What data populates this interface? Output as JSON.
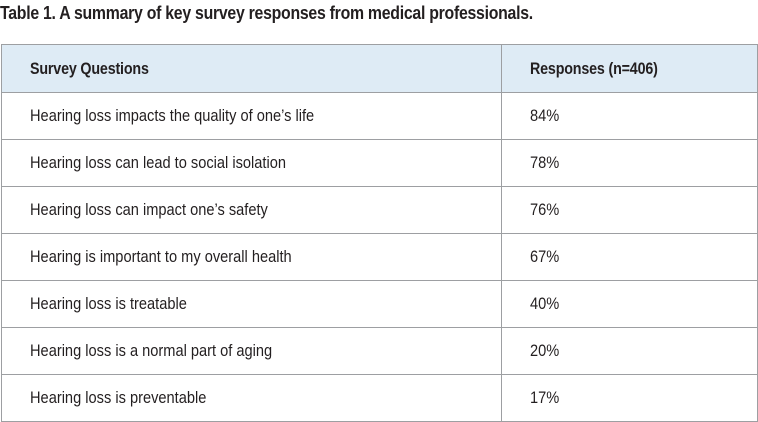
{
  "caption": "Table 1. A summary of key survey responses from medical professionals.",
  "table": {
    "headers": [
      "Survey Questions",
      "Responses (n=406)"
    ],
    "rows": [
      [
        "Hearing loss impacts the quality of one’s life",
        "84%"
      ],
      [
        "Hearing loss can lead to social isolation",
        "78%"
      ],
      [
        "Hearing loss can impact one’s safety",
        "76%"
      ],
      [
        "Hearing is important to my overall health",
        "67%"
      ],
      [
        "Hearing loss is treatable",
        "40%"
      ],
      [
        "Hearing loss is a normal part of aging",
        "20%"
      ],
      [
        "Hearing loss is preventable",
        "17%"
      ]
    ]
  },
  "colors": {
    "header_background": "#deebf5",
    "border": "#9d9fa2",
    "text": "#231f20"
  }
}
